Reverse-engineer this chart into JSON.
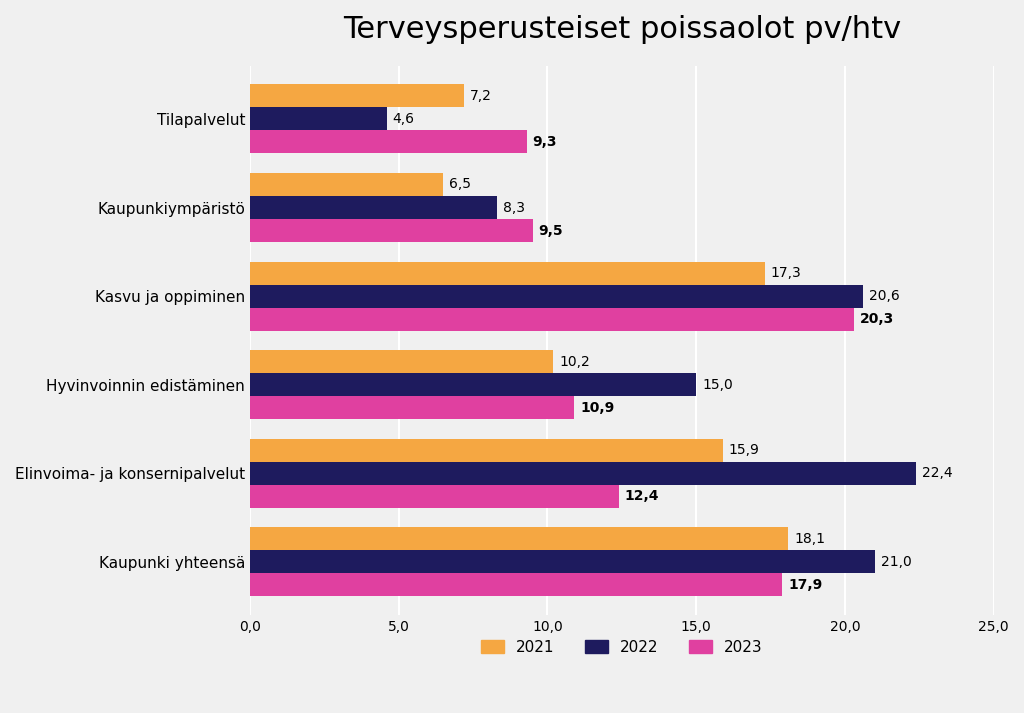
{
  "title": "Terveysperusteiset poissaolot pv/htv",
  "categories": [
    "Kaupunki yhteensä",
    "Elinvoima- ja konsernipalvelut",
    "Hyvinvoinnin edistäminen",
    "Kasvu ja oppiminen",
    "Kaupunkiympäristö",
    "Tilapalvelut"
  ],
  "series": {
    "2021": [
      18.1,
      15.9,
      10.2,
      17.3,
      6.5,
      7.2
    ],
    "2022": [
      21.0,
      22.4,
      15.0,
      20.6,
      8.3,
      4.6
    ],
    "2023": [
      17.9,
      12.4,
      10.9,
      20.3,
      9.5,
      9.3
    ]
  },
  "colors": {
    "2021": "#F5A742",
    "2022": "#1E1B5E",
    "2023": "#E040A0"
  },
  "xlim": [
    0,
    25
  ],
  "xticks": [
    0,
    5,
    10,
    15,
    20,
    25
  ],
  "xtick_labels": [
    "0,0",
    "5,0",
    "10,0",
    "15,0",
    "20,0",
    "25,0"
  ],
  "background_color": "#F0F0F0",
  "title_fontsize": 22,
  "label_fontsize": 11,
  "bar_height": 0.26,
  "legend_labels": [
    "2021",
    "2022",
    "2023"
  ]
}
